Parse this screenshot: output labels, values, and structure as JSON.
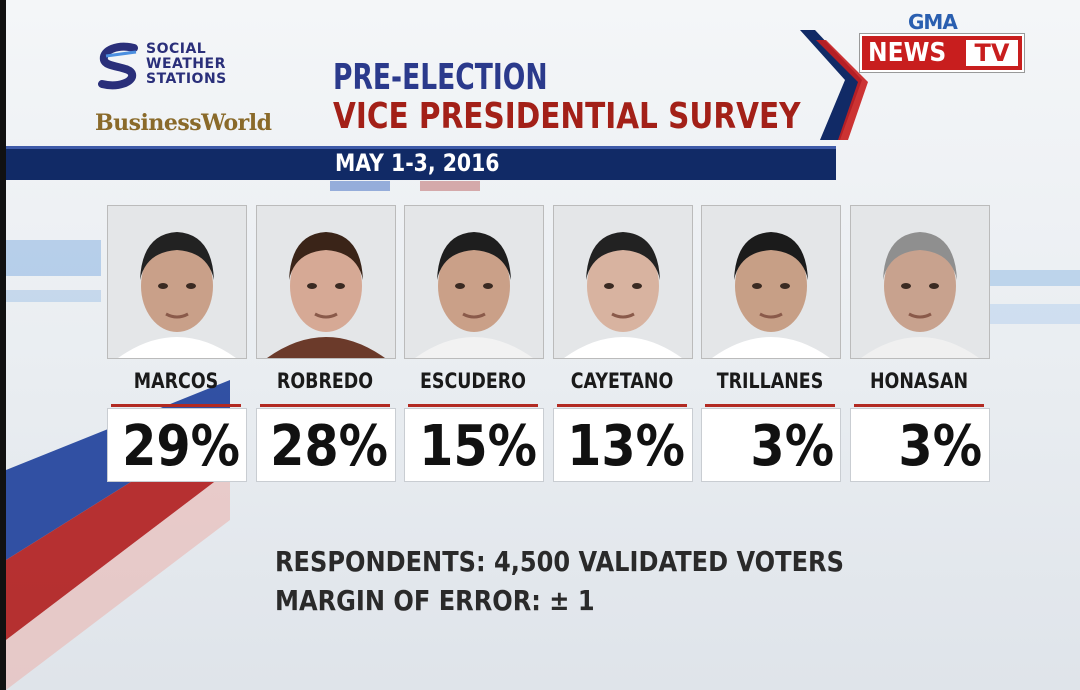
{
  "logos": {
    "sws_line1": "SOCIAL",
    "sws_line2": "WEATHER",
    "sws_line3": "STATIONS",
    "businessworld": "BusinessWorld",
    "gma": "GMA",
    "news": "NEWS",
    "tv": "TV"
  },
  "header": {
    "title_line1": "PRE-ELECTION",
    "title_line2": "VICE PRESIDENTIAL SURVEY",
    "date": "MAY 1-3, 2016"
  },
  "colors": {
    "title_blue": "#2b3a8c",
    "title_red": "#a32018",
    "date_bar": "#112a66",
    "accent_red": "#b22a22",
    "news_red": "#c81e1e"
  },
  "chart_data": {
    "type": "bar",
    "title": "PRE-ELECTION VICE PRESIDENTIAL SURVEY",
    "subtitle": "MAY 1-3, 2016",
    "categories": [
      "MARCOS",
      "ROBREDO",
      "ESCUDERO",
      "CAYETANO",
      "TRILLANES",
      "HONASAN"
    ],
    "values": [
      29,
      28,
      15,
      13,
      3,
      3
    ],
    "value_labels": [
      "29%",
      "28%",
      "15%",
      "13%",
      "3%",
      "3%"
    ],
    "unit": "%"
  },
  "footer": {
    "respondents": "RESPONDENTS: 4,500 VALIDATED VOTERS",
    "margin": "MARGIN OF ERROR: ± 1"
  }
}
